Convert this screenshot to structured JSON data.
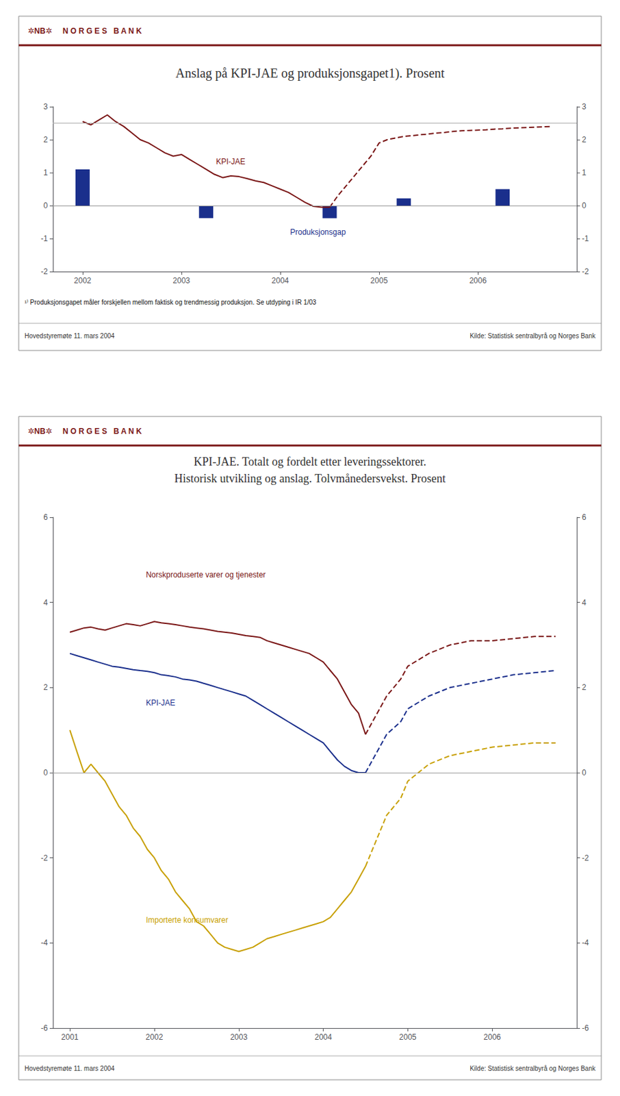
{
  "chart_data": [
    {
      "type": "bar",
      "header": [
        "✲NB✲",
        "N O R G E S   B A N K"
      ],
      "title": "Anslag på KPI-JAE og produksjonsgapet1). Prosent",
      "footnote": "¹⁾ Produksjonsgapet måler forskjellen mellom faktisk og trendmessig produksjon. Se utdyping i IR 1/03",
      "footer": [
        "Hovedstyremøte 11. mars 2004",
        "Kilde: Statistisk sentralbyrå og Norges Bank"
      ],
      "series": [
        {
          "type": "bar",
          "color": "#1a2f8c",
          "x": [
            2002.0,
            2003.25,
            2004.5,
            2005.25,
            2006.25
          ],
          "values": [
            1.1,
            -0.38,
            -0.38,
            0.22,
            0.5
          ]
        },
        {
          "type": "line",
          "color": "#7a1515",
          "line_style": "solid",
          "x": [
            2002.0,
            2002.083,
            2002.167,
            2002.25,
            2002.333,
            2002.417,
            2002.5,
            2002.583,
            2002.667,
            2002.75,
            2002.833,
            2002.917,
            2003.0,
            2003.083,
            2003.167,
            2003.25,
            2003.333,
            2003.417,
            2003.5,
            2003.583,
            2003.667,
            2003.75,
            2003.833,
            2003.917,
            2004.0,
            2004.083,
            2004.167,
            2004.25,
            2004.333,
            2004.417,
            2004.5
          ],
          "values": [
            2.55,
            2.45,
            2.6,
            2.75,
            2.55,
            2.4,
            2.2,
            2.0,
            1.9,
            1.75,
            1.6,
            1.5,
            1.55,
            1.4,
            1.25,
            1.1,
            0.95,
            0.85,
            0.9,
            0.88,
            0.82,
            0.75,
            0.7,
            0.6,
            0.5,
            0.4,
            0.25,
            0.1,
            -0.02,
            -0.05,
            -0.05
          ]
        },
        {
          "type": "line",
          "color": "#7a1515",
          "line_style": "dashed",
          "x": [
            2004.5,
            2004.583,
            2004.667,
            2004.75,
            2004.833,
            2004.917,
            2005.0,
            2005.083,
            2005.167,
            2005.25,
            2005.333,
            2005.417,
            2005.5,
            2005.583,
            2005.667,
            2005.75,
            2005.833,
            2005.917,
            2006.0,
            2006.083,
            2006.167,
            2006.25,
            2006.333,
            2006.417,
            2006.5,
            2006.583,
            2006.667,
            2006.75
          ],
          "values": [
            -0.05,
            0.3,
            0.6,
            0.9,
            1.2,
            1.5,
            1.9,
            2.0,
            2.05,
            2.1,
            2.12,
            2.15,
            2.17,
            2.2,
            2.22,
            2.25,
            2.27,
            2.28,
            2.29,
            2.3,
            2.32,
            2.33,
            2.35,
            2.36,
            2.37,
            2.38,
            2.39,
            2.4
          ]
        }
      ],
      "hlines": [
        {
          "y": 0,
          "color": "#999999"
        },
        {
          "y": 2.5,
          "color": "#b0b0b0"
        }
      ],
      "annotations": [
        {
          "text": "KPI-JAE",
          "x": 2003.35,
          "y": 1.22,
          "color": "#7a1515"
        },
        {
          "text": "Produksjonsgap",
          "x": 2004.1,
          "y": -0.92,
          "color": "#1a2f8c"
        }
      ],
      "xlim": [
        2001.7,
        2007.0
      ],
      "xticks": [
        2002,
        2003,
        2004,
        2005,
        2006
      ],
      "ylim": [
        -2,
        3
      ],
      "yticks": [
        -2,
        -1,
        0,
        1,
        2,
        3
      ],
      "y2lim": [
        -2,
        3
      ],
      "y2ticks": [
        -2,
        -1,
        0,
        1,
        2,
        3
      ],
      "grid": false
    },
    {
      "type": "line",
      "header": [
        "✲NB✲",
        "N O R G E S   B A N K"
      ],
      "title": "KPI-JAE. Totalt og fordelt etter leveringssektorer.",
      "subtitle": "Historisk utvikling og anslag. Tolvmånedersvekst. Prosent",
      "footer": [
        "Hovedstyremøte 11. mars 2004",
        "Kilde: Statistisk sentralbyrå og Norges Bank"
      ],
      "series": [
        {
          "type": "line",
          "color": "#7a1515",
          "line_style": "solid",
          "x": [
            2001.0,
            2001.083,
            2001.167,
            2001.25,
            2001.333,
            2001.417,
            2001.5,
            2001.583,
            2001.667,
            2001.75,
            2001.833,
            2001.917,
            2002.0,
            2002.083,
            2002.167,
            2002.25,
            2002.333,
            2002.417,
            2002.5,
            2002.583,
            2002.667,
            2002.75,
            2002.833,
            2002.917,
            2003.0,
            2003.083,
            2003.167,
            2003.25,
            2003.333,
            2003.417,
            2003.5,
            2003.583,
            2003.667,
            2003.75,
            2003.833,
            2003.917,
            2004.0,
            2004.083,
            2004.167,
            2004.25,
            2004.333,
            2004.417,
            2004.5
          ],
          "values": [
            3.3,
            3.35,
            3.4,
            3.42,
            3.38,
            3.35,
            3.4,
            3.45,
            3.5,
            3.48,
            3.45,
            3.5,
            3.55,
            3.52,
            3.5,
            3.48,
            3.45,
            3.42,
            3.4,
            3.38,
            3.35,
            3.32,
            3.3,
            3.28,
            3.25,
            3.22,
            3.2,
            3.18,
            3.1,
            3.05,
            3.0,
            2.95,
            2.9,
            2.85,
            2.8,
            2.7,
            2.6,
            2.4,
            2.2,
            1.9,
            1.6,
            1.4,
            0.9
          ]
        },
        {
          "type": "line",
          "color": "#7a1515",
          "line_style": "dashed",
          "x": [
            2004.5,
            2004.583,
            2004.667,
            2004.75,
            2004.917,
            2005.0,
            2005.25,
            2005.5,
            2005.75,
            2006.0,
            2006.25,
            2006.5,
            2006.75
          ],
          "values": [
            0.9,
            1.2,
            1.5,
            1.8,
            2.2,
            2.5,
            2.8,
            3.0,
            3.1,
            3.1,
            3.15,
            3.2,
            3.2
          ]
        },
        {
          "type": "line",
          "color": "#1a2f8c",
          "line_style": "solid",
          "x": [
            2001.0,
            2001.083,
            2001.167,
            2001.25,
            2001.333,
            2001.417,
            2001.5,
            2001.583,
            2001.667,
            2001.75,
            2001.833,
            2001.917,
            2002.0,
            2002.083,
            2002.167,
            2002.25,
            2002.333,
            2002.417,
            2002.5,
            2002.583,
            2002.667,
            2002.75,
            2002.833,
            2002.917,
            2003.0,
            2003.083,
            2003.167,
            2003.25,
            2003.333,
            2003.417,
            2003.5,
            2003.583,
            2003.667,
            2003.75,
            2003.833,
            2003.917,
            2004.0,
            2004.083,
            2004.167,
            2004.25,
            2004.333,
            2004.417,
            2004.5
          ],
          "values": [
            2.8,
            2.75,
            2.7,
            2.65,
            2.6,
            2.55,
            2.5,
            2.48,
            2.45,
            2.42,
            2.4,
            2.38,
            2.35,
            2.3,
            2.28,
            2.25,
            2.2,
            2.18,
            2.15,
            2.1,
            2.05,
            2.0,
            1.95,
            1.9,
            1.85,
            1.8,
            1.7,
            1.6,
            1.5,
            1.4,
            1.3,
            1.2,
            1.1,
            1.0,
            0.9,
            0.8,
            0.7,
            0.5,
            0.3,
            0.15,
            0.05,
            0.0,
            0.0
          ]
        },
        {
          "type": "line",
          "color": "#1a2f8c",
          "line_style": "dashed",
          "x": [
            2004.5,
            2004.583,
            2004.667,
            2004.75,
            2004.917,
            2005.0,
            2005.25,
            2005.5,
            2005.75,
            2006.0,
            2006.25,
            2006.5,
            2006.75
          ],
          "values": [
            0.0,
            0.3,
            0.6,
            0.9,
            1.2,
            1.5,
            1.8,
            2.0,
            2.1,
            2.2,
            2.3,
            2.35,
            2.4
          ]
        },
        {
          "type": "line",
          "color": "#c8a000",
          "line_style": "solid",
          "x": [
            2001.0,
            2001.083,
            2001.167,
            2001.25,
            2001.333,
            2001.417,
            2001.5,
            2001.583,
            2001.667,
            2001.75,
            2001.833,
            2001.917,
            2002.0,
            2002.083,
            2002.167,
            2002.25,
            2002.333,
            2002.417,
            2002.5,
            2002.583,
            2002.667,
            2002.75,
            2002.833,
            2002.917,
            2003.0,
            2003.083,
            2003.167,
            2003.25,
            2003.333,
            2003.417,
            2003.5,
            2003.583,
            2003.667,
            2003.75,
            2003.833,
            2003.917,
            2004.0,
            2004.083,
            2004.167,
            2004.25,
            2004.333,
            2004.417,
            2004.5
          ],
          "values": [
            1.0,
            0.5,
            0.0,
            0.2,
            0.0,
            -0.2,
            -0.5,
            -0.8,
            -1.0,
            -1.3,
            -1.5,
            -1.8,
            -2.0,
            -2.3,
            -2.5,
            -2.8,
            -3.0,
            -3.2,
            -3.5,
            -3.6,
            -3.8,
            -4.0,
            -4.1,
            -4.15,
            -4.2,
            -4.15,
            -4.1,
            -4.0,
            -3.9,
            -3.85,
            -3.8,
            -3.75,
            -3.7,
            -3.65,
            -3.6,
            -3.55,
            -3.5,
            -3.4,
            -3.2,
            -3.0,
            -2.8,
            -2.5,
            -2.2
          ]
        },
        {
          "type": "line",
          "color": "#c8a000",
          "line_style": "dashed",
          "x": [
            2004.5,
            2004.583,
            2004.667,
            2004.75,
            2004.917,
            2005.0,
            2005.25,
            2005.5,
            2005.75,
            2006.0,
            2006.25,
            2006.5,
            2006.75
          ],
          "values": [
            -2.2,
            -1.8,
            -1.4,
            -1.0,
            -0.6,
            -0.2,
            0.2,
            0.4,
            0.5,
            0.6,
            0.65,
            0.7,
            0.7
          ]
        }
      ],
      "hlines": [
        {
          "y": 0,
          "color": "#999999"
        }
      ],
      "annotations": [
        {
          "text": "Norskproduserte varer og tjenester",
          "x": 2001.9,
          "y": 4.55,
          "color": "#7a1515"
        },
        {
          "text": "KPI-JAE",
          "x": 2001.9,
          "y": 1.55,
          "color": "#1a2f8c"
        },
        {
          "text": "Importerte konsumvarer",
          "x": 2001.9,
          "y": -3.55,
          "color": "#c8a000"
        }
      ],
      "xlim": [
        2000.8,
        2007.0
      ],
      "xticks": [
        2001,
        2002,
        2003,
        2004,
        2005,
        2006
      ],
      "ylim": [
        -6,
        6
      ],
      "yticks": [
        -6,
        -4,
        -2,
        0,
        2,
        4,
        6
      ],
      "y2lim": [
        -6,
        6
      ],
      "y2ticks": [
        -6,
        -4,
        -2,
        0,
        2,
        4,
        6
      ],
      "grid": false
    }
  ]
}
